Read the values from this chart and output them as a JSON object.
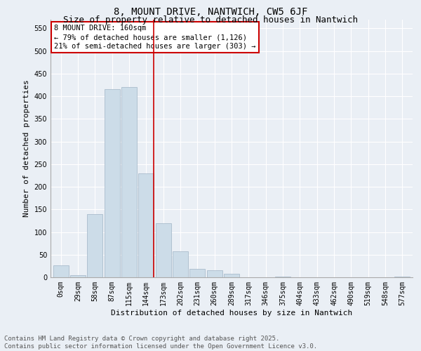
{
  "title_line1": "8, MOUNT DRIVE, NANTWICH, CW5 6JF",
  "title_line2": "Size of property relative to detached houses in Nantwich",
  "xlabel": "Distribution of detached houses by size in Nantwich",
  "ylabel": "Number of detached properties",
  "bar_color": "#ccdce8",
  "bar_edge_color": "#aabccc",
  "categories": [
    "0sqm",
    "29sqm",
    "58sqm",
    "87sqm",
    "115sqm",
    "144sqm",
    "173sqm",
    "202sqm",
    "231sqm",
    "260sqm",
    "289sqm",
    "317sqm",
    "346sqm",
    "375sqm",
    "404sqm",
    "433sqm",
    "462sqm",
    "490sqm",
    "519sqm",
    "548sqm",
    "577sqm"
  ],
  "values": [
    27,
    5,
    140,
    415,
    420,
    230,
    120,
    57,
    18,
    16,
    7,
    0,
    0,
    2,
    0,
    0,
    0,
    0,
    0,
    0,
    2
  ],
  "ylim": [
    0,
    570
  ],
  "yticks": [
    0,
    50,
    100,
    150,
    200,
    250,
    300,
    350,
    400,
    450,
    500,
    550
  ],
  "vline_pos": 5.42,
  "vline_color": "#cc0000",
  "annotation_text": "8 MOUNT DRIVE: 160sqm\n← 79% of detached houses are smaller (1,126)\n21% of semi-detached houses are larger (303) →",
  "annotation_box_color": "#ffffff",
  "annotation_border_color": "#cc0000",
  "footnote_line1": "Contains HM Land Registry data © Crown copyright and database right 2025.",
  "footnote_line2": "Contains public sector information licensed under the Open Government Licence v3.0.",
  "background_color": "#eaeff5",
  "plot_bg_color": "#eaeff5",
  "grid_color": "#ffffff",
  "title_fontsize": 10,
  "subtitle_fontsize": 9,
  "label_fontsize": 8,
  "tick_fontsize": 7,
  "footnote_fontsize": 6.5,
  "annotation_fontsize": 7.5
}
